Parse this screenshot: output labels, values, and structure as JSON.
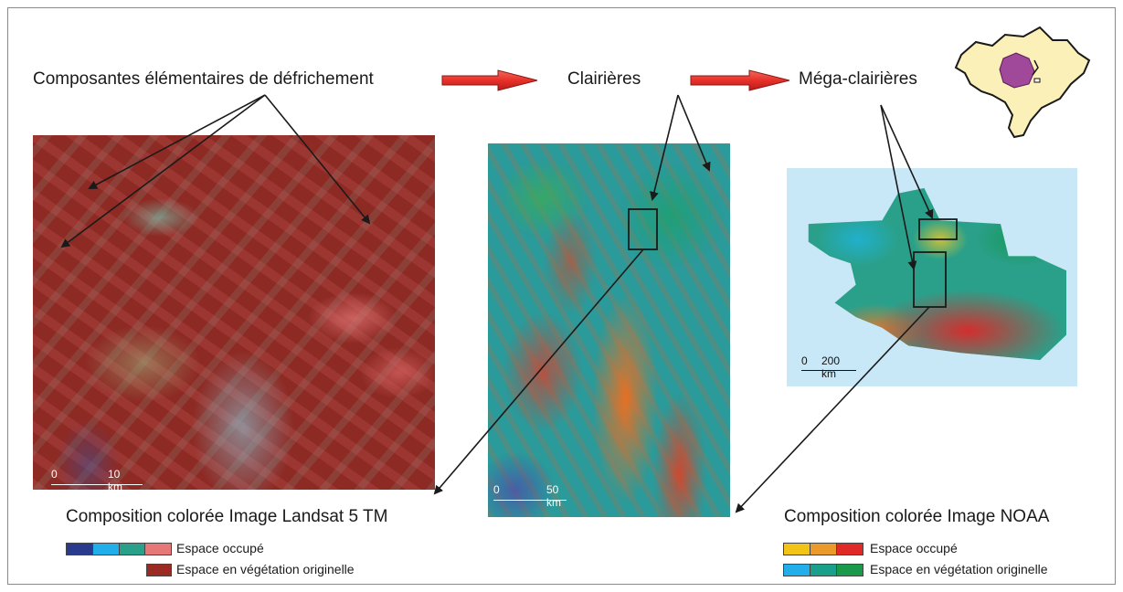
{
  "flow": {
    "step1": "Composantes élémentaires de défrichement",
    "step2": "Clairières",
    "step3": "Méga-clairières"
  },
  "images": {
    "landsat": {
      "scale_zero": "0",
      "scale_label": "10 km"
    },
    "middle": {
      "scale_zero": "0",
      "scale_label": "50 km"
    },
    "noaa": {
      "scale_zero": "0",
      "scale_label": "200 km"
    }
  },
  "legend_landsat": {
    "title": "Composition colorée Image Landsat 5 TM",
    "occupied_label": "Espace occupé",
    "occupied_colors": [
      "#2a3a8c",
      "#22aee8",
      "#2aa08a",
      "#e67878"
    ],
    "original_label": "Espace en végétation originelle",
    "original_colors": [
      "#9a2a22"
    ]
  },
  "legend_noaa": {
    "title": "Composition colorée Image NOAA",
    "occupied_label": "Espace occupé",
    "occupied_colors": [
      "#f2c418",
      "#ea9a2a",
      "#e02a28"
    ],
    "original_label": "Espace en végétation originelle",
    "original_colors": [
      "#22aee8",
      "#1aa08a",
      "#1a9a4a"
    ]
  },
  "colors": {
    "arrow_red": "#e8302a",
    "brazil_fill": "#fbf0b8",
    "region_fill": "#a0489a",
    "noaa_bg": "#c8e8f8"
  }
}
